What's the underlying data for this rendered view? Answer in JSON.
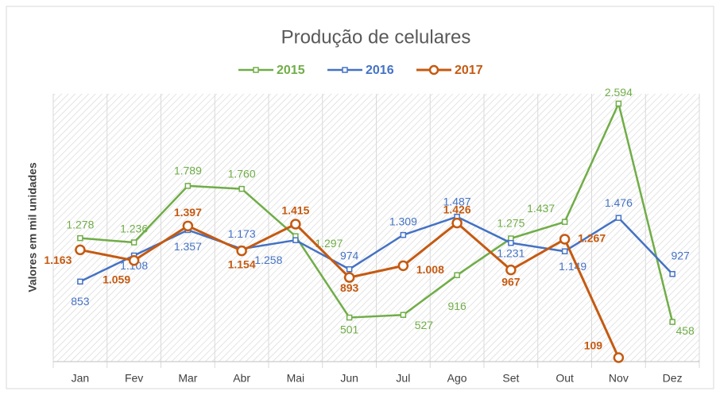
{
  "chart_data": {
    "type": "line",
    "title": "Produção de celulares",
    "y_label": "Valores em mil unidades",
    "categories": [
      "Jan",
      "Fev",
      "Mar",
      "Abr",
      "Mai",
      "Jun",
      "Jul",
      "Ago",
      "Set",
      "Out",
      "Nov",
      "Dez"
    ],
    "series": [
      {
        "name": "2015",
        "color": "#70ad47",
        "marker": "square",
        "values": [
          1278,
          1236,
          1789,
          1760,
          1297,
          501,
          527,
          916,
          1275,
          1437,
          2594,
          458
        ],
        "value_labels": [
          "1.278",
          "1.236",
          "1.789",
          "1.760",
          "1.297",
          "501",
          "527",
          "916",
          "1.275",
          "1.437",
          "2.594",
          "458"
        ]
      },
      {
        "name": "2016",
        "color": "#4472c4",
        "marker": "square",
        "values": [
          853,
          1108,
          1357,
          1173,
          1258,
          974,
          1309,
          1487,
          1231,
          1149,
          1476,
          927
        ],
        "value_labels": [
          "853",
          "1.108",
          "1.357",
          "1.173",
          "1.258",
          "974",
          "1.309",
          "1.487",
          "1.231",
          "1.149",
          "1.476",
          "927"
        ]
      },
      {
        "name": "2017",
        "color": "#c55a11",
        "marker": "circle",
        "values": [
          1163,
          1059,
          1397,
          1154,
          1415,
          893,
          1008,
          1426,
          967,
          1267,
          109,
          null
        ],
        "value_labels": [
          "1.163",
          "1.059",
          "1.397",
          "1.154",
          "1.415",
          "893",
          "1.008",
          "1.426",
          "967",
          "1.267",
          "109",
          null
        ]
      }
    ],
    "ylim": [
      70,
      2690
    ],
    "legend": "top"
  }
}
